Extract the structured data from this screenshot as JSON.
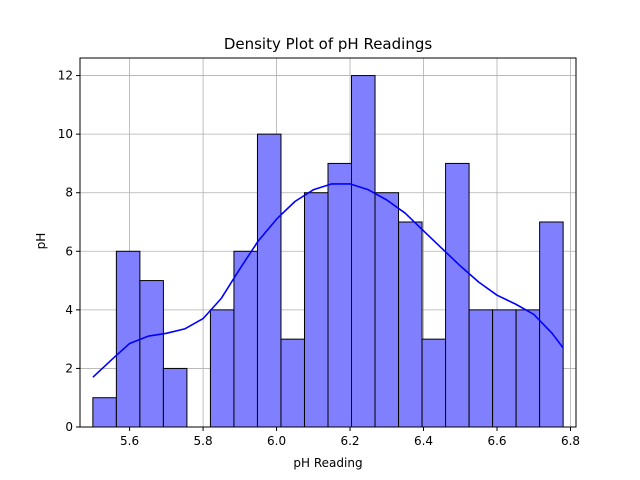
{
  "chart_data": {
    "type": "bar",
    "title": "Density Plot of pH Readings",
    "xlabel": "pH Reading",
    "ylabel": "pH",
    "xlim": [
      5.465,
      6.815
    ],
    "ylim": [
      0,
      12.6
    ],
    "xticks": [
      5.6,
      5.8,
      6.0,
      6.2,
      6.4,
      6.6,
      6.8
    ],
    "xtick_labels": [
      "5.6",
      "5.8",
      "6.0",
      "6.2",
      "6.4",
      "6.6",
      "6.8"
    ],
    "yticks": [
      0,
      2,
      4,
      6,
      8,
      10,
      12
    ],
    "ytick_labels": [
      "0",
      "2",
      "4",
      "6",
      "8",
      "10",
      "12"
    ],
    "grid": true,
    "bins": {
      "start": 5.5,
      "width": 0.064,
      "counts": [
        1,
        6,
        5,
        2,
        0,
        4,
        6,
        10,
        3,
        8,
        9,
        12,
        8,
        7,
        3,
        9,
        4,
        4,
        4,
        7
      ]
    },
    "kde": {
      "x": [
        5.5,
        5.56,
        5.6,
        5.65,
        5.7,
        5.75,
        5.8,
        5.85,
        5.9,
        5.95,
        6.0,
        6.05,
        6.1,
        6.15,
        6.2,
        6.25,
        6.3,
        6.35,
        6.4,
        6.45,
        6.5,
        6.55,
        6.6,
        6.65,
        6.7,
        6.75,
        6.78
      ],
      "y": [
        1.7,
        2.4,
        2.85,
        3.1,
        3.2,
        3.35,
        3.7,
        4.4,
        5.4,
        6.35,
        7.1,
        7.7,
        8.1,
        8.3,
        8.3,
        8.1,
        7.75,
        7.3,
        6.7,
        6.1,
        5.5,
        4.95,
        4.5,
        4.2,
        3.85,
        3.2,
        2.7
      ]
    },
    "colors": {
      "bar_fill": "#8080ff",
      "bar_edge": "#000000",
      "kde_line": "#0000ff",
      "grid": "#b0b0b0"
    }
  }
}
